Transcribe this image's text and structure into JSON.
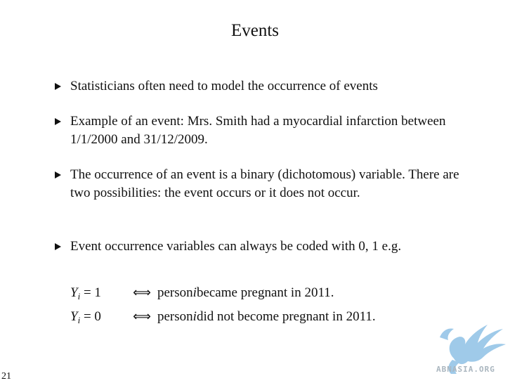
{
  "slide": {
    "title": "Events",
    "page_number": "21",
    "bullets": [
      "Statisticians often need to model the occurrence of events",
      "Example of an event: Mrs. Smith had a myocardial infarction between 1/1/2000 and 31/12/2009.",
      "The occurrence of an event is a binary (dichotomous) variable. There are two possibilities: the event occurs or it does not occur.",
      "Event occurrence variables can always be coded with 0, 1 e.g."
    ],
    "equations": [
      {
        "var": "Y",
        "sub": "i",
        "rhs": "= 1",
        "iff": "⟺",
        "pre": "person ",
        "ital": "i",
        "post": " became pregnant in 2011."
      },
      {
        "var": "Y",
        "sub": "i",
        "rhs": "= 0",
        "iff": "⟺",
        "pre": "person ",
        "ital": "i",
        "post": " did not become pregnant in 2011."
      }
    ],
    "watermark_text": "ABNASIA.ORG",
    "colors": {
      "watermark": "#8fc1e6",
      "text": "#111111"
    }
  }
}
